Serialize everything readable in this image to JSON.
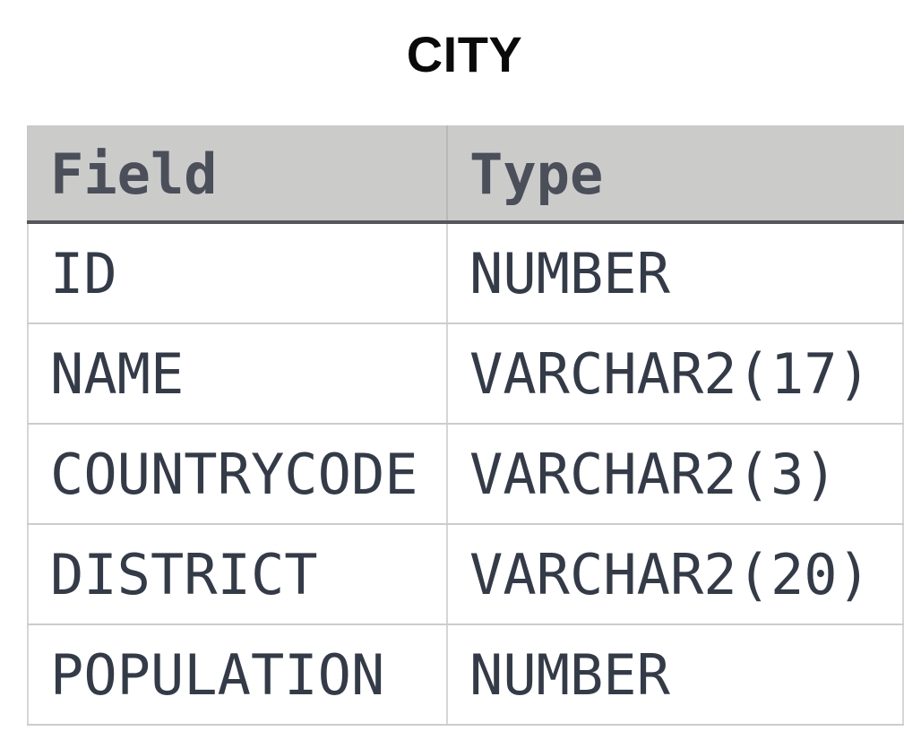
{
  "title": "CITY",
  "table": {
    "columns": [
      "Field",
      "Type"
    ],
    "rows": [
      {
        "field": "ID",
        "type": "NUMBER"
      },
      {
        "field": "NAME",
        "type": "VARCHAR2(17)"
      },
      {
        "field": "COUNTRYCODE",
        "type": "VARCHAR2(3)"
      },
      {
        "field": "DISTRICT",
        "type": "VARCHAR2(20)"
      },
      {
        "field": "POPULATION",
        "type": "NUMBER"
      }
    ]
  },
  "colors": {
    "header_background": "#cbcbca",
    "header_text": "#4b4f5a",
    "header_underline": "#56575b",
    "body_text": "#343b48",
    "grid_line": "#cccccc",
    "title_text": "#0a0a0a",
    "page_background": "#ffffff"
  }
}
